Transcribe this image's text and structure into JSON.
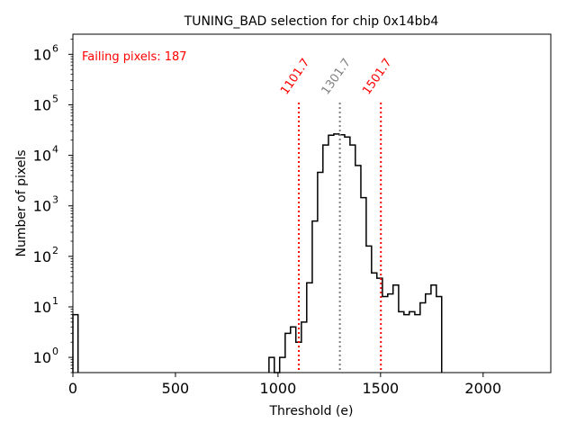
{
  "chart_data": {
    "type": "bar",
    "subtype": "step-histogram",
    "title": "TUNING_BAD selection for chip 0x14bb4",
    "xlabel": "Threshold (e)",
    "ylabel": "Number of pixels",
    "xlim": [
      0,
      2330
    ],
    "ylim": [
      0.5,
      2500000
    ],
    "yscale": "log",
    "xticks": [
      0,
      500,
      1000,
      1500,
      2000
    ],
    "xtick_labels": [
      "0",
      "500",
      "1000",
      "1500",
      "2000"
    ],
    "yticks": [
      1,
      10,
      100,
      1000,
      10000,
      100000,
      1000000
    ],
    "ytick_exponents": [
      "0",
      "1",
      "2",
      "3",
      "4",
      "5",
      "6"
    ],
    "grid": false,
    "bins": [
      {
        "x0": 0,
        "x1": 25,
        "count": 7
      },
      {
        "x0": 956,
        "x1": 982,
        "count": 1
      },
      {
        "x0": 982,
        "x1": 1008,
        "count": 0
      },
      {
        "x0": 1008,
        "x1": 1035,
        "count": 1
      },
      {
        "x0": 1035,
        "x1": 1061,
        "count": 3
      },
      {
        "x0": 1061,
        "x1": 1087,
        "count": 4
      },
      {
        "x0": 1087,
        "x1": 1114,
        "count": 2
      },
      {
        "x0": 1114,
        "x1": 1140,
        "count": 5
      },
      {
        "x0": 1140,
        "x1": 1167,
        "count": 30
      },
      {
        "x0": 1167,
        "x1": 1193,
        "count": 500
      },
      {
        "x0": 1193,
        "x1": 1219,
        "count": 4600
      },
      {
        "x0": 1219,
        "x1": 1246,
        "count": 16000
      },
      {
        "x0": 1246,
        "x1": 1272,
        "count": 25000
      },
      {
        "x0": 1272,
        "x1": 1298,
        "count": 26500
      },
      {
        "x0": 1298,
        "x1": 1325,
        "count": 25500
      },
      {
        "x0": 1325,
        "x1": 1351,
        "count": 23000
      },
      {
        "x0": 1351,
        "x1": 1377,
        "count": 16000
      },
      {
        "x0": 1377,
        "x1": 1404,
        "count": 6300
      },
      {
        "x0": 1404,
        "x1": 1430,
        "count": 1450
      },
      {
        "x0": 1430,
        "x1": 1456,
        "count": 160
      },
      {
        "x0": 1456,
        "x1": 1482,
        "count": 47
      },
      {
        "x0": 1482,
        "x1": 1509,
        "count": 37
      },
      {
        "x0": 1509,
        "x1": 1535,
        "count": 16
      },
      {
        "x0": 1535,
        "x1": 1561,
        "count": 18
      },
      {
        "x0": 1561,
        "x1": 1588,
        "count": 27
      },
      {
        "x0": 1588,
        "x1": 1614,
        "count": 8
      },
      {
        "x0": 1614,
        "x1": 1640,
        "count": 7
      },
      {
        "x0": 1640,
        "x1": 1667,
        "count": 8
      },
      {
        "x0": 1667,
        "x1": 1693,
        "count": 7
      },
      {
        "x0": 1693,
        "x1": 1719,
        "count": 12
      },
      {
        "x0": 1719,
        "x1": 1746,
        "count": 18
      },
      {
        "x0": 1746,
        "x1": 1772,
        "count": 27
      },
      {
        "x0": 1772,
        "x1": 1798,
        "count": 16
      }
    ],
    "vlines": [
      {
        "x": 1101.7,
        "label": "1101.7",
        "color": "#ff0000",
        "style": "dotted"
      },
      {
        "x": 1301.7,
        "label": "1301.7",
        "color": "#808080",
        "style": "dotted"
      },
      {
        "x": 1501.7,
        "label": "1501.7",
        "color": "#ff0000",
        "style": "dotted"
      }
    ],
    "annotations": [
      {
        "text": "Failing pixels: 187",
        "color": "#ff0000",
        "position": "top-left"
      }
    ]
  }
}
